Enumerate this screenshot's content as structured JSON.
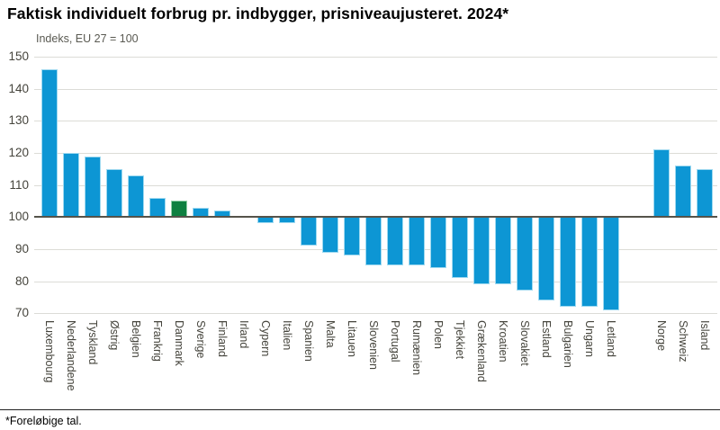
{
  "header": {
    "title": "Faktisk individuelt forbrug pr. indbygger, prisniveaujusteret. 2024*"
  },
  "footer": {
    "note": "*Foreløbige tal."
  },
  "chart_data": {
    "type": "bar",
    "title": "Faktisk individuelt forbrug pr. indbygger, prisniveaujusteret. 2024*",
    "axis_note": "Indeks, EU 27 = 100",
    "baseline": 100,
    "ylim": [
      70,
      150
    ],
    "yticks": [
      70,
      80,
      90,
      100,
      110,
      120,
      130,
      140,
      150
    ],
    "grid": true,
    "legend": "none",
    "categories": [
      "Luxembourg",
      "Nederlandene",
      "Tyskland",
      "Østrig",
      "Belgien",
      "Frankrig",
      "Danmark",
      "Sverige",
      "Finland",
      "Irland",
      "Cypern",
      "Italien",
      "Spanien",
      "Malta",
      "Litauen",
      "Slovenien",
      "Portugal",
      "Rumænien",
      "Polen",
      "Tjekkiet",
      "Grækenland",
      "Kroatien",
      "Slovakiet",
      "Estland",
      "Bulgarien",
      "Ungarn",
      "Letland",
      "Norge",
      "Schweiz",
      "Island"
    ],
    "values": [
      146,
      120,
      119,
      115,
      113,
      106,
      105,
      103,
      102,
      100,
      98,
      98,
      91,
      89,
      88,
      85,
      85,
      85,
      84,
      81,
      79,
      79,
      77,
      74,
      72,
      72,
      71,
      121,
      116,
      115
    ],
    "highlight_category": "Danmark",
    "gap_after_category": "Letland",
    "colors": {
      "bar": "#0d96d4",
      "bar_edge": "#9fd9f0",
      "highlight": "#0e8040",
      "highlight_edge": "#8fcfa6",
      "baseline_line": "#55534a",
      "gridline": "#dcdcd7"
    }
  }
}
